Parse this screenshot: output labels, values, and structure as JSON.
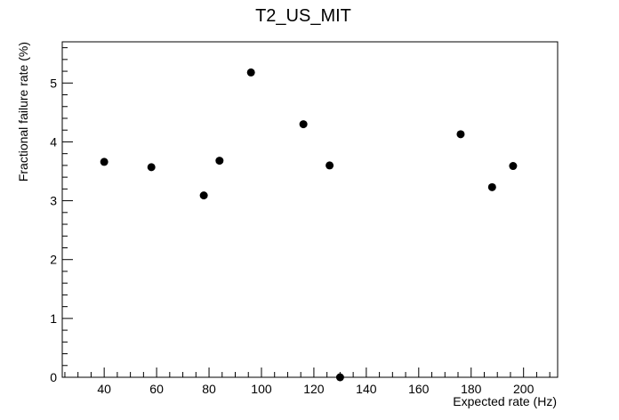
{
  "chart_data": {
    "type": "scatter",
    "title": "T2_US_MIT",
    "xlabel": "Expected rate (Hz)",
    "ylabel": "Fractional failure rate (%)",
    "xlim": [
      24,
      213
    ],
    "ylim": [
      0,
      5.7
    ],
    "x_ticks": [
      40,
      60,
      80,
      100,
      120,
      140,
      160,
      180,
      200
    ],
    "y_ticks": [
      0,
      1,
      2,
      3,
      4,
      5
    ],
    "grid": false,
    "marker_color": "#000000",
    "points": [
      {
        "x": 40,
        "y": 3.66
      },
      {
        "x": 58,
        "y": 3.57
      },
      {
        "x": 78,
        "y": 3.09
      },
      {
        "x": 84,
        "y": 3.68
      },
      {
        "x": 96,
        "y": 5.18
      },
      {
        "x": 116,
        "y": 4.3
      },
      {
        "x": 126,
        "y": 3.6
      },
      {
        "x": 130,
        "y": 0.0
      },
      {
        "x": 176,
        "y": 4.13
      },
      {
        "x": 188,
        "y": 3.23
      },
      {
        "x": 196,
        "y": 3.59
      }
    ]
  }
}
